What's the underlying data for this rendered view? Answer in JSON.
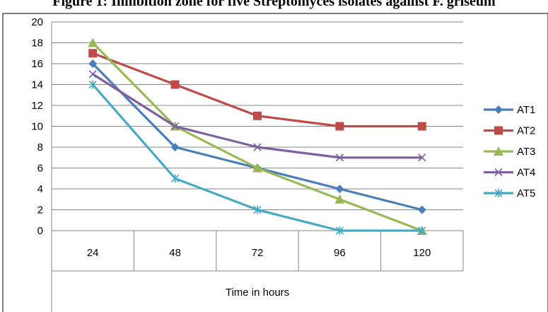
{
  "chart_data": {
    "type": "line",
    "title": "Figure 1: Inhibition zone for five Streptomyces isolates against F. griseum",
    "xlabel": "Time in hours",
    "ylabel": "",
    "categories": [
      "24",
      "48",
      "72",
      "96",
      "120"
    ],
    "ylim": [
      0,
      20
    ],
    "yticks": [
      0,
      2,
      4,
      6,
      8,
      10,
      12,
      14,
      16,
      18,
      20
    ],
    "grid": "horizontal",
    "legend_position": "right",
    "series": [
      {
        "name": "AT1",
        "color": "#4a7ebb",
        "marker": "diamond",
        "values": [
          16,
          8,
          6,
          4,
          2
        ]
      },
      {
        "name": "AT2",
        "color": "#be4b48",
        "marker": "square",
        "values": [
          17,
          14,
          11,
          10,
          10
        ]
      },
      {
        "name": "AT3",
        "color": "#98b954",
        "marker": "triangle",
        "values": [
          18,
          10,
          6,
          3,
          0
        ]
      },
      {
        "name": "AT4",
        "color": "#7d60a0",
        "marker": "x",
        "values": [
          15,
          10,
          8,
          7,
          7
        ]
      },
      {
        "name": "AT5",
        "color": "#46aac5",
        "marker": "star",
        "values": [
          14,
          5,
          2,
          0,
          0
        ]
      }
    ]
  }
}
